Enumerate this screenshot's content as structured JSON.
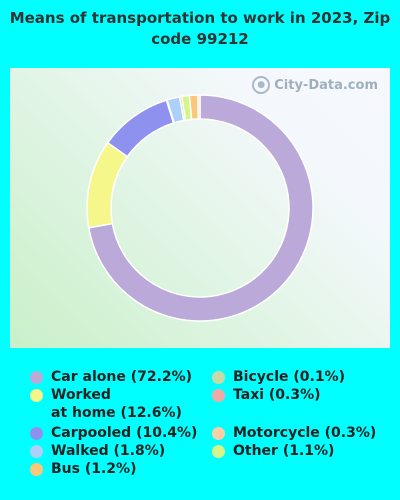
{
  "title": "Means of transportation to work in 2023, Zip code 99212",
  "watermark": "City-Data.com",
  "colors": {
    "page_background": "#00ffff"
  },
  "chart_data": {
    "type": "pie",
    "donut": true,
    "start_angle_deg": 0,
    "slices": [
      {
        "label": "Car alone",
        "value": 72.2,
        "legend": "Car alone (72.2%)",
        "color": "#bba9d9"
      },
      {
        "label": "Worked at home",
        "value": 12.6,
        "legend": "Worked\nat home (12.6%)",
        "color": "#f5f78a"
      },
      {
        "label": "Carpooled",
        "value": 10.4,
        "legend": "Carpooled (10.4%)",
        "color": "#8f91ef"
      },
      {
        "label": "Walked",
        "value": 1.8,
        "legend": "Walked (1.8%)",
        "color": "#acd0f8"
      },
      {
        "label": "Bus",
        "value": 1.2,
        "legend": "Bus (1.2%)",
        "color": "#fbc77a"
      },
      {
        "label": "Bicycle",
        "value": 0.1,
        "legend": "Bicycle (0.1%)",
        "color": "#c8d9a8"
      },
      {
        "label": "Taxi",
        "value": 0.3,
        "legend": "Taxi (0.3%)",
        "color": "#f0aaa5"
      },
      {
        "label": "Motorcycle",
        "value": 0.3,
        "legend": "Motorcycle (0.3%)",
        "color": "#f8d0a8"
      },
      {
        "label": "Other",
        "value": 1.1,
        "legend": "Other (1.1%)",
        "color": "#d5f58a"
      }
    ],
    "slice_order_clockwise": [
      "Car alone",
      "Worked at home",
      "Carpooled",
      "Bicycle",
      "Walked",
      "Taxi",
      "Other",
      "Bus",
      "Motorcycle"
    ],
    "legend_columns": [
      [
        "Car alone",
        "Worked at home",
        "Carpooled",
        "Walked",
        "Bus"
      ],
      [
        "Bicycle",
        "Taxi",
        "Motorcycle",
        "Other"
      ]
    ]
  }
}
